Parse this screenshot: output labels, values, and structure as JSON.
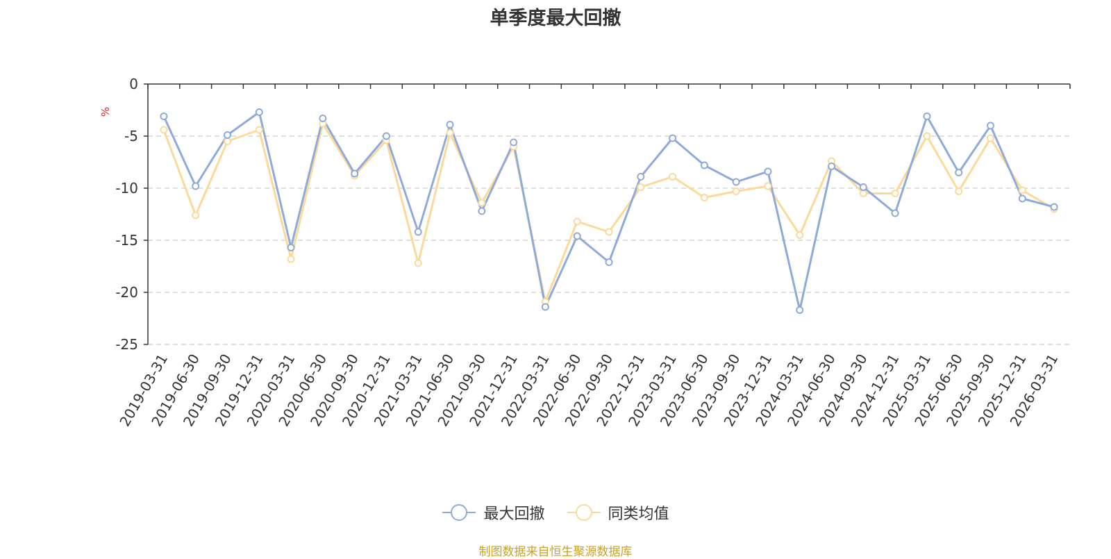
{
  "chart_data": {
    "type": "line",
    "title": "单季度最大回撤",
    "ylabel": "%",
    "ylim": [
      -25,
      0
    ],
    "yticks": [
      0,
      -5,
      -10,
      -15,
      -20,
      -25
    ],
    "grid": true,
    "legend_position": "bottom",
    "categories": [
      "2019-03-31",
      "2019-06-30",
      "2019-09-30",
      "2019-12-31",
      "2020-03-31",
      "2020-06-30",
      "2020-09-30",
      "2020-12-31",
      "2021-03-31",
      "2021-06-30",
      "2021-09-30",
      "2021-12-31",
      "2022-03-31",
      "2022-06-30",
      "2022-09-30",
      "2022-12-31",
      "2023-03-31",
      "2023-06-30",
      "2023-09-30",
      "2023-12-31",
      "2024-03-31",
      "2024-06-30",
      "2024-09-30",
      "2024-12-31",
      "2025-03-31",
      "2025-06-30",
      "2025-09-30",
      "2025-12-31",
      "2026-03-31"
    ],
    "series": [
      {
        "name": "最大回撤",
        "color": "#8eaadb",
        "values": [
          -3.1,
          -9.8,
          -4.9,
          -2.7,
          -15.7,
          -3.3,
          -8.6,
          -5.0,
          -14.2,
          -3.9,
          -12.2,
          -5.6,
          -21.4,
          -14.6,
          -17.1,
          -8.9,
          -5.2,
          -7.8,
          -9.4,
          -8.4,
          -21.7,
          -7.9,
          -9.9,
          -12.4,
          -3.1,
          -8.5,
          -4.0,
          -11.0,
          -11.8
        ]
      },
      {
        "name": "同类均值",
        "color": "#fcd999",
        "values": [
          -4.4,
          -12.6,
          -5.5,
          -4.4,
          -16.8,
          -3.8,
          -8.8,
          -5.4,
          -17.2,
          -4.7,
          -11.4,
          -6.0,
          -20.9,
          -13.2,
          -14.2,
          -9.9,
          -8.9,
          -10.9,
          -10.3,
          -9.8,
          -14.5,
          -7.4,
          -10.5,
          -10.5,
          -5.0,
          -10.3,
          -5.2,
          -10.2,
          -12.0
        ]
      }
    ]
  },
  "footer": {
    "source": "制图数据来自恒生聚源数据库"
  }
}
